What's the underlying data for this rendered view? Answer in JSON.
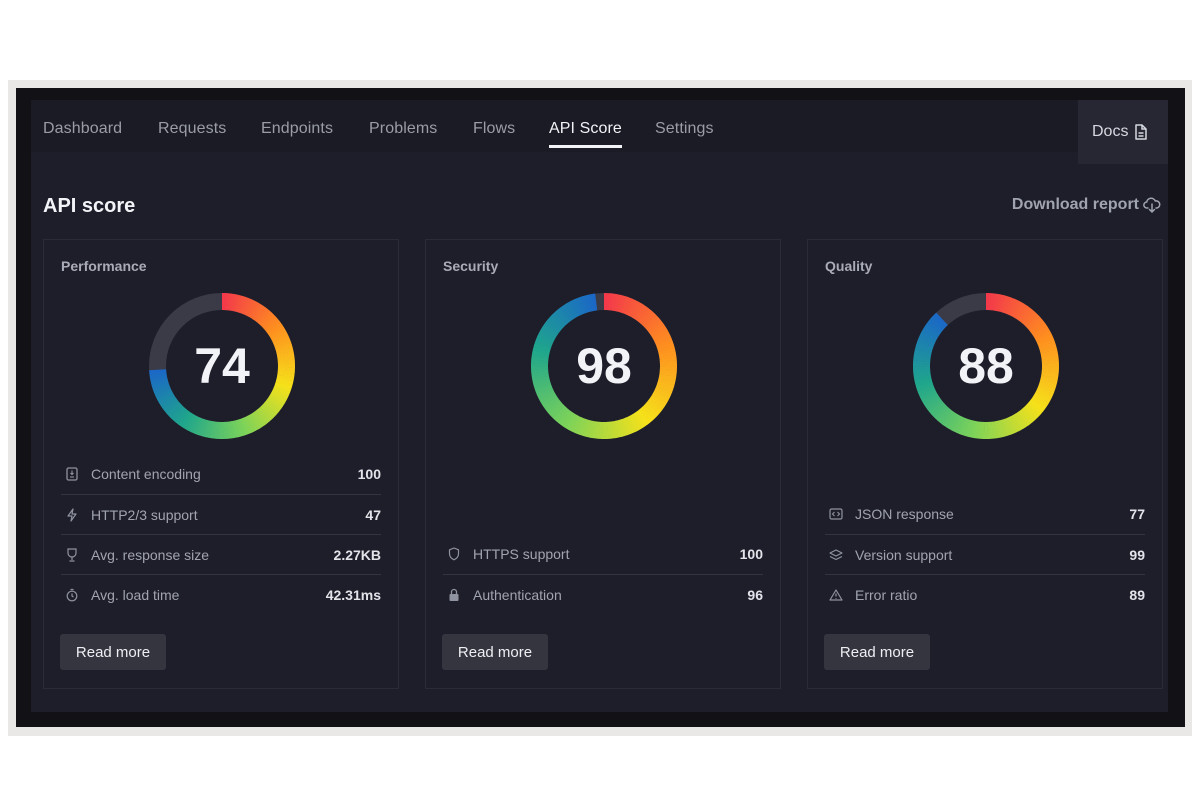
{
  "nav": {
    "tabs": [
      {
        "label": "Dashboard"
      },
      {
        "label": "Requests"
      },
      {
        "label": "Endpoints"
      },
      {
        "label": "Problems"
      },
      {
        "label": "Flows"
      },
      {
        "label": "API Score"
      },
      {
        "label": "Settings"
      }
    ],
    "active_tab": "API Score",
    "docs_label": "Docs",
    "docs_icon": "document-icon"
  },
  "header": {
    "title": "API score",
    "download_label": "Download report",
    "download_icon": "cloud-download-icon"
  },
  "cards": [
    {
      "title": "Performance",
      "score": "74",
      "score_fraction": 0.74,
      "metrics": [
        {
          "icon": "document-icon",
          "label": "Content encoding",
          "value": "100"
        },
        {
          "icon": "lightning-icon",
          "label": "HTTP2/3 support",
          "value": "47"
        },
        {
          "icon": "trophy-icon",
          "label": "Avg. response size",
          "value": "2.27KB"
        },
        {
          "icon": "stopwatch-icon",
          "label": "Avg. load time",
          "value": "42.31ms"
        }
      ],
      "button_label": "Read more"
    },
    {
      "title": "Security",
      "score": "98",
      "score_fraction": 0.98,
      "metrics": [
        {
          "icon": "shield-icon",
          "label": "HTTPS support",
          "value": "100"
        },
        {
          "icon": "lock-icon",
          "label": "Authentication",
          "value": "96"
        }
      ],
      "button_label": "Read more"
    },
    {
      "title": "Quality",
      "score": "88",
      "score_fraction": 0.88,
      "metrics": [
        {
          "icon": "code-icon",
          "label": "JSON response",
          "value": "77"
        },
        {
          "icon": "layers-icon",
          "label": "Version support",
          "value": "99"
        },
        {
          "icon": "warning-icon",
          "label": "Error ratio",
          "value": "89"
        }
      ],
      "button_label": "Read more"
    }
  ],
  "colors": {
    "background": "#1d1e29",
    "gauge_track": "#3a3b47",
    "gauge_gradient": [
      "#f4394b",
      "#ff8f1f",
      "#f6e21a",
      "#7cd35a",
      "#1fa68c",
      "#1b66c9"
    ]
  }
}
